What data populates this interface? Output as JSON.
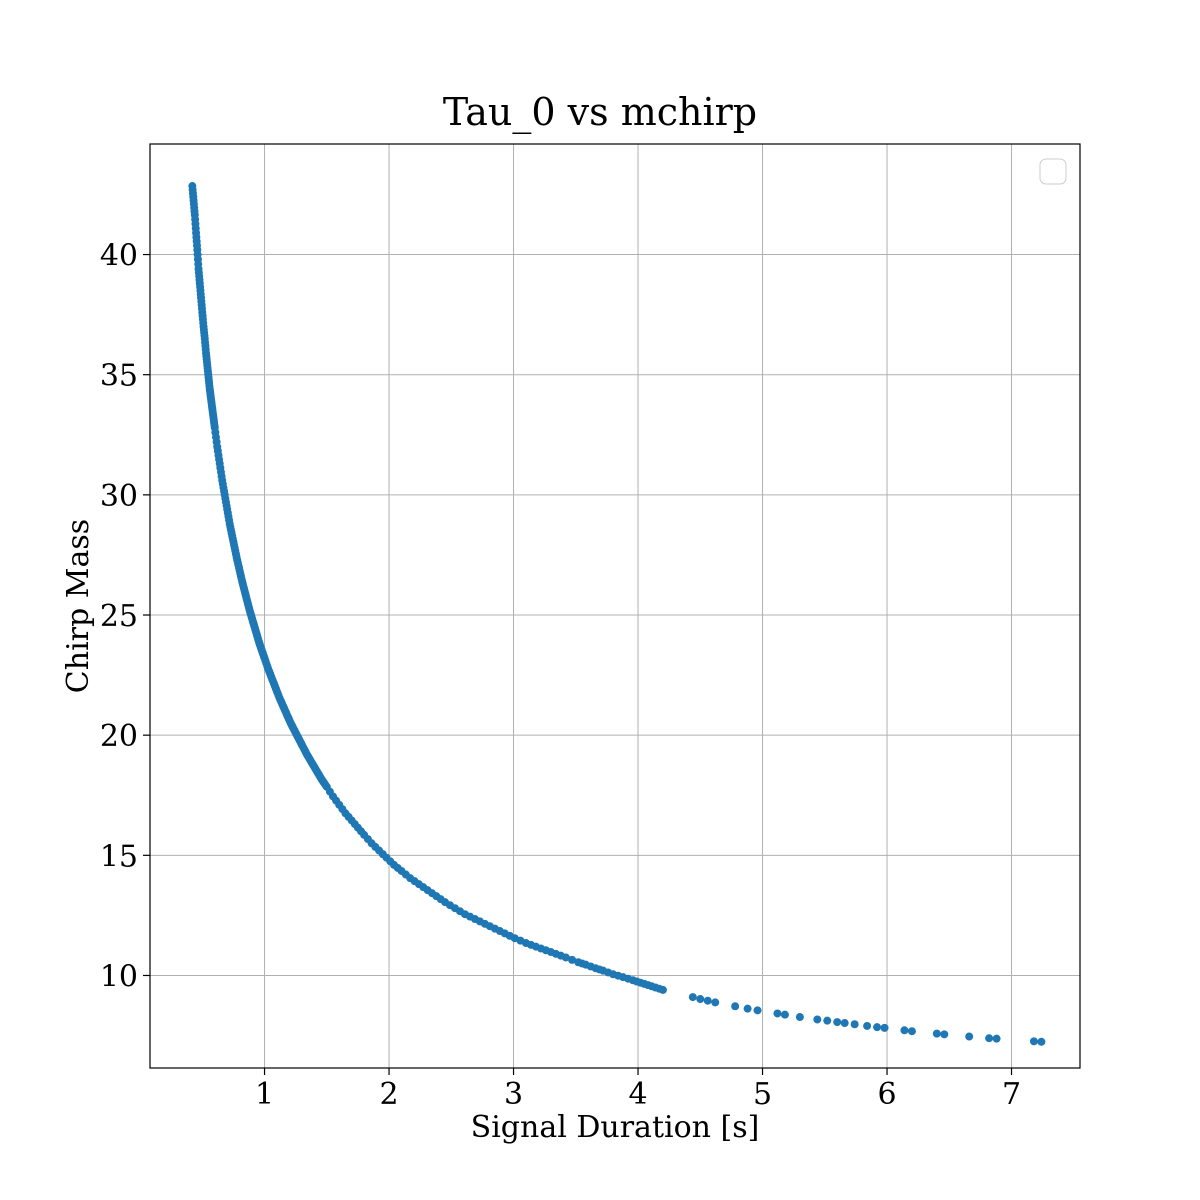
{
  "chart_data": {
    "type": "scatter",
    "title": "Tau_0 vs mchirp",
    "xlabel": "Signal Duration [s]",
    "ylabel": "Chirp Mass",
    "xlim": [
      0.08,
      7.55
    ],
    "ylim": [
      6.15,
      44.6
    ],
    "xticks": [
      1,
      2,
      3,
      4,
      5,
      6,
      7
    ],
    "yticks": [
      10,
      15,
      20,
      25,
      30,
      35,
      40
    ],
    "grid": true,
    "legend": "upper right (empty)",
    "marker_color": "#1f77b4",
    "series": [
      {
        "x": [
          0.42,
          0.43,
          0.44,
          0.45,
          0.46,
          0.47,
          0.48,
          0.49,
          0.5,
          0.51,
          0.52,
          0.53,
          0.54,
          0.55,
          0.56,
          0.57,
          0.58,
          0.59,
          0.6,
          0.62,
          0.64,
          0.66,
          0.68,
          0.7,
          0.72,
          0.74,
          0.76,
          0.78,
          0.8,
          0.82,
          0.84,
          0.86,
          0.88,
          0.9,
          0.92,
          0.94,
          0.96,
          0.98,
          1.0,
          1.03,
          1.06,
          1.09,
          1.12,
          1.15,
          1.18,
          1.21,
          1.24,
          1.27,
          1.3,
          1.34,
          1.38,
          1.42,
          1.46,
          1.5,
          1.55,
          1.6,
          1.65,
          1.7,
          1.75,
          1.8,
          1.86,
          1.92,
          1.98,
          2.04,
          2.1,
          2.17,
          2.24,
          2.31,
          2.38,
          2.45,
          2.53,
          2.61,
          2.69,
          2.77,
          2.85,
          2.93,
          3.01,
          3.1,
          3.18,
          3.26,
          3.34,
          3.42,
          3.52,
          3.58,
          3.66,
          3.72,
          3.8,
          3.88,
          3.96,
          4.02,
          4.08,
          4.14,
          4.2,
          4.44,
          4.5,
          4.56,
          4.62,
          4.78,
          4.88,
          4.96,
          5.12,
          5.18,
          5.3,
          5.44,
          5.52,
          5.6,
          5.66,
          5.74,
          5.84,
          5.92,
          5.98,
          6.14,
          6.2,
          6.4,
          6.46,
          6.66,
          6.82,
          6.88,
          7.18,
          7.24
        ],
        "y": [
          42.85,
          42.25,
          41.65,
          40.9,
          40.2,
          39.4,
          38.8,
          38.2,
          37.6,
          37.0,
          36.5,
          35.9,
          35.4,
          34.9,
          34.4,
          34.0,
          33.6,
          33.2,
          32.8,
          32.0,
          31.3,
          30.6,
          30.0,
          29.4,
          28.8,
          28.3,
          27.8,
          27.3,
          26.85,
          26.4,
          26.0,
          25.6,
          25.2,
          24.85,
          24.5,
          24.15,
          23.8,
          23.5,
          23.2,
          22.75,
          22.35,
          21.95,
          21.55,
          21.2,
          20.85,
          20.5,
          20.2,
          19.9,
          19.6,
          19.2,
          18.85,
          18.5,
          18.15,
          17.85,
          17.45,
          17.1,
          16.75,
          16.45,
          16.15,
          15.85,
          15.5,
          15.2,
          14.9,
          14.6,
          14.35,
          14.05,
          13.8,
          13.55,
          13.3,
          13.05,
          12.8,
          12.55,
          12.35,
          12.15,
          11.95,
          11.75,
          11.55,
          11.35,
          11.2,
          11.05,
          10.9,
          10.75,
          10.55,
          10.45,
          10.3,
          10.2,
          10.05,
          9.93,
          9.8,
          9.7,
          9.6,
          9.5,
          9.4,
          9.1,
          9.02,
          8.95,
          8.88,
          8.72,
          8.62,
          8.55,
          8.42,
          8.37,
          8.27,
          8.17,
          8.12,
          8.06,
          8.02,
          7.97,
          7.9,
          7.85,
          7.82,
          7.72,
          7.68,
          7.58,
          7.55,
          7.46,
          7.39,
          7.37,
          7.26,
          7.24
        ]
      }
    ]
  }
}
